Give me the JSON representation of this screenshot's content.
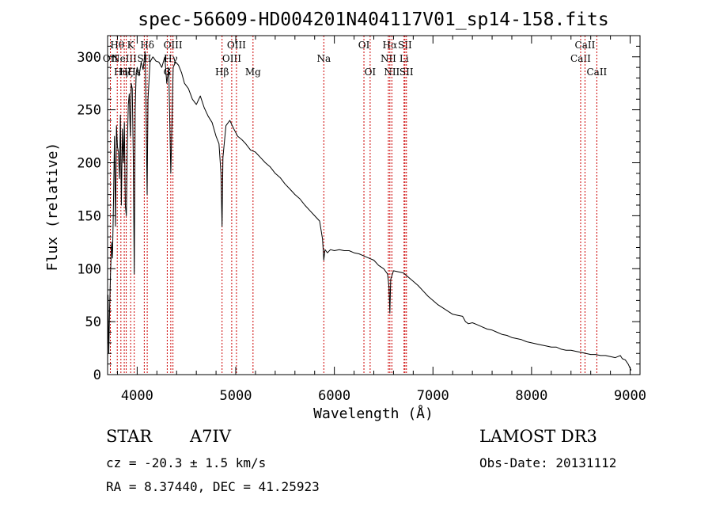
{
  "chart_data": {
    "type": "line",
    "title": "spec-56609-HD004201N404117V01_sp14-158.fits",
    "xlabel": "Wavelength (Å)",
    "ylabel": "Flux (relative)",
    "xlim": [
      3700,
      9100
    ],
    "ylim": [
      0,
      320
    ],
    "x_ticks": [
      4000,
      5000,
      6000,
      7000,
      8000,
      9000
    ],
    "y_ticks": [
      0,
      50,
      100,
      150,
      200,
      250,
      300
    ],
    "series": [
      {
        "name": "flux",
        "points": [
          [
            3700,
            5
          ],
          [
            3705,
            75
          ],
          [
            3712,
            20
          ],
          [
            3720,
            60
          ],
          [
            3730,
            95
          ],
          [
            3740,
            125
          ],
          [
            3750,
            110
          ],
          [
            3760,
            165
          ],
          [
            3770,
            225
          ],
          [
            3780,
            140
          ],
          [
            3790,
            235
          ],
          [
            3800,
            215
          ],
          [
            3810,
            210
          ],
          [
            3820,
            185
          ],
          [
            3830,
            245
          ],
          [
            3840,
            160
          ],
          [
            3850,
            232
          ],
          [
            3860,
            200
          ],
          [
            3870,
            238
          ],
          [
            3880,
            160
          ],
          [
            3890,
            150
          ],
          [
            3900,
            215
          ],
          [
            3910,
            255
          ],
          [
            3920,
            265
          ],
          [
            3930,
            225
          ],
          [
            3940,
            275
          ],
          [
            3950,
            270
          ],
          [
            3960,
            210
          ],
          [
            3970,
            95
          ],
          [
            3980,
            250
          ],
          [
            3990,
            285
          ],
          [
            4000,
            290
          ],
          [
            4020,
            282
          ],
          [
            4040,
            295
          ],
          [
            4060,
            288
          ],
          [
            4080,
            305
          ],
          [
            4090,
            250
          ],
          [
            4101,
            170
          ],
          [
            4110,
            260
          ],
          [
            4130,
            295
          ],
          [
            4160,
            300
          ],
          [
            4190,
            296
          ],
          [
            4220,
            295
          ],
          [
            4250,
            290
          ],
          [
            4280,
            300
          ],
          [
            4300,
            275
          ],
          [
            4320,
            290
          ],
          [
            4335,
            220
          ],
          [
            4341,
            190
          ],
          [
            4350,
            225
          ],
          [
            4365,
            290
          ],
          [
            4390,
            295
          ],
          [
            4420,
            292
          ],
          [
            4450,
            285
          ],
          [
            4480,
            275
          ],
          [
            4520,
            270
          ],
          [
            4560,
            260
          ],
          [
            4600,
            255
          ],
          [
            4640,
            263
          ],
          [
            4680,
            252
          ],
          [
            4720,
            244
          ],
          [
            4760,
            238
          ],
          [
            4800,
            225
          ],
          [
            4830,
            218
          ],
          [
            4850,
            190
          ],
          [
            4861,
            140
          ],
          [
            4870,
            205
          ],
          [
            4900,
            235
          ],
          [
            4940,
            240
          ],
          [
            4980,
            232
          ],
          [
            5020,
            225
          ],
          [
            5060,
            222
          ],
          [
            5100,
            218
          ],
          [
            5150,
            212
          ],
          [
            5200,
            210
          ],
          [
            5250,
            205
          ],
          [
            5300,
            200
          ],
          [
            5350,
            196
          ],
          [
            5400,
            190
          ],
          [
            5450,
            186
          ],
          [
            5500,
            180
          ],
          [
            5550,
            175
          ],
          [
            5600,
            170
          ],
          [
            5650,
            166
          ],
          [
            5700,
            160
          ],
          [
            5750,
            155
          ],
          [
            5800,
            150
          ],
          [
            5850,
            145
          ],
          [
            5880,
            128
          ],
          [
            5893,
            108
          ],
          [
            5905,
            118
          ],
          [
            5930,
            115
          ],
          [
            5960,
            118
          ],
          [
            6000,
            117
          ],
          [
            6050,
            118
          ],
          [
            6100,
            117
          ],
          [
            6150,
            117
          ],
          [
            6200,
            115
          ],
          [
            6250,
            114
          ],
          [
            6300,
            112
          ],
          [
            6350,
            110
          ],
          [
            6400,
            108
          ],
          [
            6450,
            103
          ],
          [
            6500,
            100
          ],
          [
            6540,
            95
          ],
          [
            6555,
            82
          ],
          [
            6563,
            58
          ],
          [
            6572,
            90
          ],
          [
            6600,
            98
          ],
          [
            6650,
            97
          ],
          [
            6700,
            96
          ],
          [
            6750,
            92
          ],
          [
            6800,
            88
          ],
          [
            6850,
            84
          ],
          [
            6900,
            79
          ],
          [
            6950,
            74
          ],
          [
            7000,
            70
          ],
          [
            7050,
            66
          ],
          [
            7100,
            63
          ],
          [
            7150,
            60
          ],
          [
            7200,
            57
          ],
          [
            7250,
            56
          ],
          [
            7300,
            55
          ],
          [
            7330,
            50
          ],
          [
            7360,
            48
          ],
          [
            7400,
            49
          ],
          [
            7450,
            47
          ],
          [
            7500,
            45
          ],
          [
            7550,
            43
          ],
          [
            7600,
            42
          ],
          [
            7650,
            40
          ],
          [
            7700,
            38
          ],
          [
            7750,
            37
          ],
          [
            7800,
            35
          ],
          [
            7850,
            34
          ],
          [
            7900,
            33
          ],
          [
            7950,
            31
          ],
          [
            8000,
            30
          ],
          [
            8050,
            29
          ],
          [
            8100,
            28
          ],
          [
            8150,
            27
          ],
          [
            8200,
            26
          ],
          [
            8250,
            26
          ],
          [
            8300,
            24
          ],
          [
            8350,
            23
          ],
          [
            8400,
            23
          ],
          [
            8450,
            22
          ],
          [
            8500,
            21
          ],
          [
            8550,
            20
          ],
          [
            8600,
            19
          ],
          [
            8650,
            19
          ],
          [
            8700,
            18
          ],
          [
            8750,
            18
          ],
          [
            8800,
            17
          ],
          [
            8850,
            16
          ],
          [
            8900,
            18
          ],
          [
            8920,
            15
          ],
          [
            8950,
            14
          ],
          [
            8980,
            10
          ],
          [
            9000,
            6
          ],
          [
            9010,
            4
          ]
        ]
      }
    ],
    "lines": [
      {
        "wavelength": 3728,
        "label": "OII",
        "row": 2
      },
      {
        "wavelength": 3798,
        "label": "Hθ",
        "row": 1
      },
      {
        "wavelength": 3835,
        "label": "Hη",
        "row": 3
      },
      {
        "wavelength": 3869,
        "label": "NeIII",
        "row": 2
      },
      {
        "wavelength": 3889,
        "label": "Hζ",
        "row": 3
      },
      {
        "wavelength": 3934,
        "label": "K",
        "row": 1
      },
      {
        "wavelength": 3970,
        "label": "Hε",
        "row": 3
      },
      {
        "wavelength": 4072,
        "label": "SII",
        "row": 2
      },
      {
        "wavelength": 4102,
        "label": "Hδ",
        "row": 1
      },
      {
        "wavelength": 4305,
        "label": "G",
        "row": 3
      },
      {
        "wavelength": 4341,
        "label": "Hγ",
        "row": 2
      },
      {
        "wavelength": 4363,
        "label": "OIII",
        "row": 1
      },
      {
        "wavelength": 4861,
        "label": "Hβ",
        "row": 3
      },
      {
        "wavelength": 4959,
        "label": "OIII",
        "row": 2
      },
      {
        "wavelength": 5007,
        "label": "OIII",
        "row": 1
      },
      {
        "wavelength": 5175,
        "label": "Mg",
        "row": 3
      },
      {
        "wavelength": 5893,
        "label": "Na",
        "row": 2
      },
      {
        "wavelength": 6300,
        "label": "OI",
        "row": 1
      },
      {
        "wavelength": 6363,
        "label": "OI",
        "row": 3
      },
      {
        "wavelength": 6548,
        "label": "NII",
        "row": 2
      },
      {
        "wavelength": 6563,
        "label": "Hα",
        "row": 1
      },
      {
        "wavelength": 6583,
        "label": "NII",
        "row": 3
      },
      {
        "wavelength": 6707,
        "label": "Li",
        "row": 2
      },
      {
        "wavelength": 6716,
        "label": "SII",
        "row": 1
      },
      {
        "wavelength": 6731,
        "label": "SII",
        "row": 3
      },
      {
        "wavelength": 8498,
        "label": "CaII",
        "row": 2
      },
      {
        "wavelength": 8542,
        "label": "CaII",
        "row": 1
      },
      {
        "wavelength": 8662,
        "label": "CaII",
        "row": 3
      }
    ],
    "annotations": {
      "class": "STAR",
      "subclass": "A7IV",
      "survey": "LAMOST DR3",
      "redshift": "cz = -20.3 ± 1.5 km/s",
      "obs_date": "Obs-Date: 20131112",
      "coords": "RA =   8.37440, DEC =  41.25923"
    },
    "colors": {
      "spectrum": "#000000",
      "line_markers": "#cc0000",
      "axes": "#000000"
    }
  }
}
